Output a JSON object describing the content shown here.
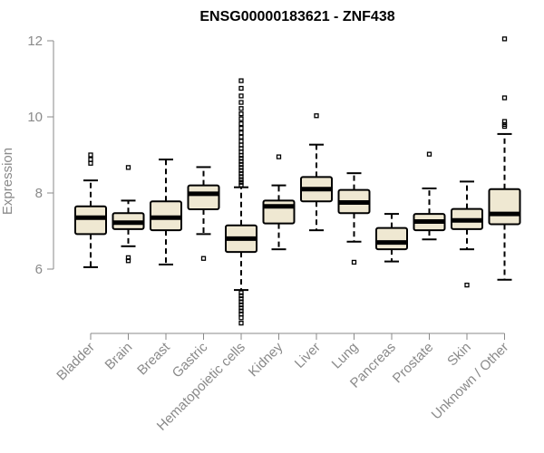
{
  "chart_data": {
    "type": "boxplot",
    "title": "ENSG00000183621 - ZNF438",
    "xlabel": "",
    "ylabel": "Expression",
    "ylim": [
      4.5,
      12.2
    ],
    "yticks": [
      6,
      8,
      10,
      12
    ],
    "grid": false,
    "categories": [
      "Bladder",
      "Brain",
      "Breast",
      "Gastric",
      "Hematopoietic cells",
      "Kidney",
      "Liver",
      "Lung",
      "Pancreas",
      "Prostate",
      "Skin",
      "Unknown / Other"
    ],
    "colors": {
      "box_fill": "#efe8d2",
      "box_stroke": "#000000",
      "axis": "#8a8a8a"
    },
    "boxes": [
      {
        "category": "Bladder",
        "whisker_low": 6.05,
        "q1": 6.92,
        "median": 7.35,
        "q3": 7.65,
        "whisker_high": 8.33,
        "outliers": [
          8.78,
          8.88,
          9.0
        ]
      },
      {
        "category": "Brain",
        "whisker_low": 6.6,
        "q1": 7.05,
        "median": 7.22,
        "q3": 7.47,
        "whisker_high": 7.8,
        "outliers": [
          8.67,
          6.3,
          6.22
        ]
      },
      {
        "category": "Breast",
        "whisker_low": 6.12,
        "q1": 7.02,
        "median": 7.35,
        "q3": 7.78,
        "whisker_high": 8.88,
        "outliers": []
      },
      {
        "category": "Gastric",
        "whisker_low": 6.92,
        "q1": 7.57,
        "median": 7.98,
        "q3": 8.2,
        "whisker_high": 8.68,
        "outliers": [
          6.28
        ]
      },
      {
        "category": "Hematopoietic cells",
        "whisker_low": 5.45,
        "q1": 6.45,
        "median": 6.8,
        "q3": 7.15,
        "whisker_high": 8.15,
        "outliers": [
          10.95,
          10.75,
          10.55,
          10.38,
          10.22,
          10.08,
          9.95,
          9.82,
          9.7,
          9.58,
          9.47,
          9.36,
          9.26,
          9.17,
          9.08,
          8.99,
          8.91,
          8.83,
          8.75,
          8.67,
          8.59,
          8.51,
          8.43,
          8.35,
          8.28,
          8.21,
          5.38,
          5.3,
          5.22,
          5.14,
          5.06,
          4.98,
          4.9,
          4.82,
          4.72,
          4.58
        ]
      },
      {
        "category": "Kidney",
        "whisker_low": 6.52,
        "q1": 7.2,
        "median": 7.65,
        "q3": 7.8,
        "whisker_high": 8.2,
        "outliers": [
          8.95
        ]
      },
      {
        "category": "Liver",
        "whisker_low": 7.02,
        "q1": 7.78,
        "median": 8.1,
        "q3": 8.42,
        "whisker_high": 9.27,
        "outliers": [
          10.03
        ]
      },
      {
        "category": "Lung",
        "whisker_low": 6.72,
        "q1": 7.47,
        "median": 7.75,
        "q3": 8.08,
        "whisker_high": 8.52,
        "outliers": [
          6.18
        ]
      },
      {
        "category": "Pancreas",
        "whisker_low": 6.2,
        "q1": 6.52,
        "median": 6.7,
        "q3": 7.08,
        "whisker_high": 7.45,
        "outliers": []
      },
      {
        "category": "Prostate",
        "whisker_low": 6.78,
        "q1": 7.02,
        "median": 7.25,
        "q3": 7.45,
        "whisker_high": 8.12,
        "outliers": [
          9.02
        ]
      },
      {
        "category": "Skin",
        "whisker_low": 6.52,
        "q1": 7.05,
        "median": 7.28,
        "q3": 7.58,
        "whisker_high": 8.3,
        "outliers": [
          5.58
        ]
      },
      {
        "category": "Unknown / Other",
        "whisker_low": 5.72,
        "q1": 7.18,
        "median": 7.45,
        "q3": 8.1,
        "whisker_high": 9.55,
        "outliers": [
          12.05,
          10.5,
          9.88,
          9.8,
          9.75
        ]
      }
    ]
  }
}
